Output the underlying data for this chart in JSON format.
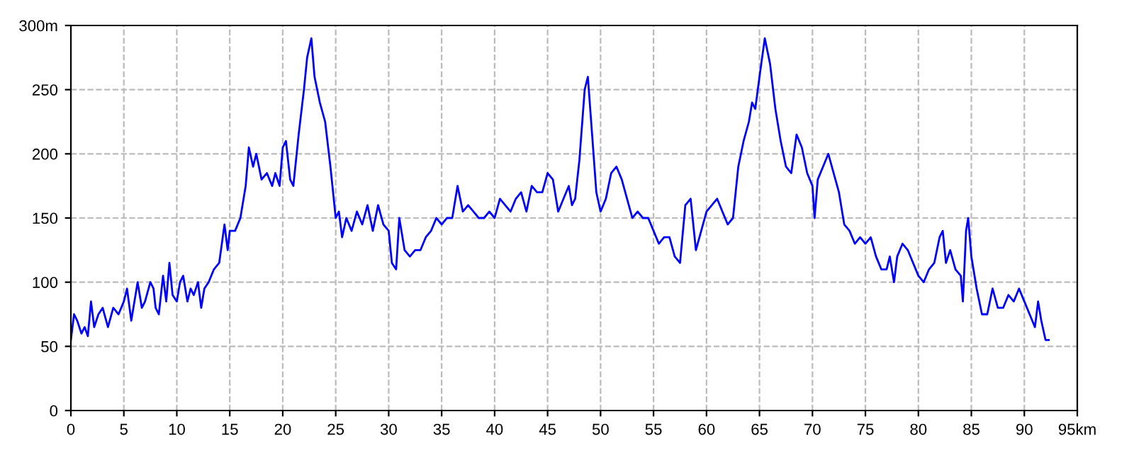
{
  "chart_data": {
    "type": "line",
    "xlim": [
      0,
      95
    ],
    "ylim": [
      0,
      300
    ],
    "xticks": [
      0,
      5,
      10,
      15,
      20,
      25,
      30,
      35,
      40,
      45,
      50,
      55,
      60,
      65,
      70,
      75,
      80,
      85,
      90,
      {
        "value": 95,
        "label": "95km"
      }
    ],
    "yticks": [
      0,
      50,
      100,
      150,
      200,
      250,
      {
        "value": 300,
        "label": "300m"
      }
    ],
    "grid": true,
    "marker": "none",
    "line_style": "solid",
    "series": [
      {
        "color": "#0000ff",
        "x": [
          0,
          0.3,
          0.6,
          1,
          1.3,
          1.6,
          1.9,
          2.2,
          2.6,
          3,
          3.5,
          4,
          4.5,
          5,
          5.3,
          5.7,
          6,
          6.3,
          6.7,
          7,
          7.5,
          7.8,
          8,
          8.3,
          8.7,
          9,
          9.3,
          9.6,
          10,
          10.3,
          10.6,
          11,
          11.3,
          11.6,
          12,
          12.3,
          12.6,
          13,
          13.5,
          14,
          14.5,
          14.8,
          15,
          15.5,
          16,
          16.5,
          16.8,
          17.2,
          17.5,
          18,
          18.5,
          19,
          19.3,
          19.7,
          20,
          20.3,
          20.7,
          21,
          21.5,
          22,
          22.3,
          22.7,
          23,
          23.5,
          24,
          24.5,
          25,
          25.3,
          25.6,
          26,
          26.5,
          27,
          27.5,
          28,
          28.5,
          29,
          29.5,
          30,
          30.3,
          30.7,
          31,
          31.5,
          32,
          32.5,
          33,
          33.5,
          34,
          34.5,
          35,
          35.5,
          36,
          36.5,
          37,
          37.5,
          38,
          38.5,
          39,
          39.5,
          40,
          40.5,
          41,
          41.5,
          42,
          42.5,
          43,
          43.5,
          44,
          44.5,
          45,
          45.5,
          46,
          46.5,
          47,
          47.3,
          47.6,
          48,
          48.5,
          48.8,
          49.2,
          49.6,
          50,
          50.5,
          51,
          51.5,
          52,
          52.5,
          53,
          53.5,
          54,
          54.5,
          55,
          55.5,
          56,
          56.5,
          57,
          57.5,
          58,
          58.5,
          59,
          59.5,
          60,
          60.5,
          61,
          61.5,
          62,
          62.5,
          63,
          63.5,
          64,
          64.3,
          64.6,
          65,
          65.5,
          66,
          66.5,
          67,
          67.5,
          68,
          68.5,
          69,
          69.5,
          70,
          70.2,
          70.5,
          71,
          71.5,
          72,
          72.5,
          73,
          73.5,
          74,
          74.5,
          75,
          75.5,
          76,
          76.5,
          77,
          77.3,
          77.7,
          78,
          78.5,
          79,
          79.5,
          80,
          80.5,
          81,
          81.5,
          82,
          82.3,
          82.6,
          83,
          83.5,
          84,
          84.2,
          84.5,
          84.7,
          85,
          85.5,
          86,
          86.5,
          87,
          87.5,
          88,
          88.5,
          89,
          89.5,
          90,
          90.5,
          91,
          91.3,
          91.6,
          92,
          92.3
        ],
        "values": [
          55,
          75,
          70,
          60,
          65,
          58,
          85,
          65,
          75,
          80,
          65,
          80,
          75,
          85,
          95,
          70,
          85,
          100,
          80,
          85,
          100,
          95,
          80,
          75,
          105,
          85,
          115,
          90,
          85,
          100,
          105,
          85,
          95,
          90,
          100,
          80,
          95,
          100,
          110,
          115,
          145,
          125,
          140,
          140,
          150,
          175,
          205,
          190,
          200,
          180,
          185,
          175,
          185,
          175,
          205,
          210,
          180,
          175,
          215,
          250,
          275,
          290,
          260,
          240,
          225,
          190,
          150,
          155,
          135,
          150,
          140,
          155,
          145,
          160,
          140,
          160,
          145,
          140,
          115,
          110,
          150,
          125,
          120,
          125,
          125,
          135,
          140,
          150,
          145,
          150,
          150,
          175,
          155,
          160,
          155,
          150,
          150,
          155,
          150,
          165,
          160,
          155,
          165,
          170,
          155,
          175,
          170,
          170,
          185,
          180,
          155,
          165,
          175,
          160,
          165,
          195,
          250,
          260,
          215,
          170,
          155,
          165,
          185,
          190,
          180,
          165,
          150,
          155,
          150,
          150,
          140,
          130,
          135,
          135,
          120,
          115,
          160,
          165,
          125,
          140,
          155,
          160,
          165,
          155,
          145,
          150,
          190,
          210,
          225,
          240,
          235,
          260,
          290,
          270,
          235,
          210,
          190,
          185,
          215,
          205,
          185,
          175,
          150,
          180,
          190,
          200,
          185,
          170,
          145,
          140,
          130,
          135,
          130,
          135,
          120,
          110,
          110,
          120,
          100,
          120,
          130,
          125,
          115,
          105,
          100,
          110,
          115,
          135,
          140,
          115,
          125,
          110,
          105,
          85,
          140,
          150,
          120,
          95,
          75,
          75,
          95,
          80,
          80,
          90,
          85,
          95,
          85,
          75,
          65,
          85,
          70,
          55,
          55
        ]
      }
    ]
  }
}
